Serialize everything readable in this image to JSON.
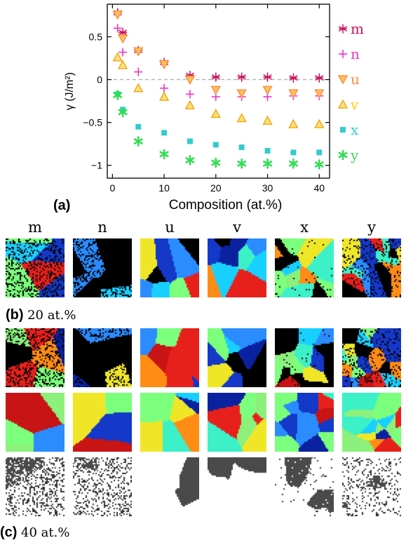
{
  "chart_data": {
    "type": "scatter",
    "ylabel": "γ (J/m²)",
    "xlabel": "Composition (at.%)",
    "xlim": [
      -1,
      42
    ],
    "ylim": [
      -1.15,
      0.88
    ],
    "xticks": [
      0,
      10,
      20,
      30,
      40
    ],
    "yticks": [
      0.5,
      0,
      -0.5,
      -1
    ],
    "ytick_labels": [
      "0.5",
      "0",
      "−0.5",
      "−1"
    ],
    "zero_line": true,
    "legend_position": "right",
    "series": [
      {
        "name": "m",
        "marker": "asterisk",
        "color": "#c8105a",
        "x": [
          1,
          2,
          5,
          10,
          15,
          20,
          25,
          30,
          35,
          40
        ],
        "y": [
          0.78,
          0.55,
          0.34,
          0.2,
          0.05,
          0.03,
          0.03,
          0.03,
          0.02,
          0.02
        ]
      },
      {
        "name": "n",
        "marker": "plus",
        "color": "#ee33cc",
        "x": [
          1,
          2,
          5,
          10,
          15,
          20,
          25,
          30,
          35,
          40
        ],
        "y": [
          0.6,
          0.32,
          0.09,
          -0.1,
          -0.17,
          -0.2,
          -0.2,
          -0.2,
          -0.19,
          -0.19
        ]
      },
      {
        "name": "u",
        "marker": "triangle-down",
        "color": "#ff8c3a",
        "x": [
          1,
          2,
          5,
          10,
          15,
          20,
          25,
          30,
          35,
          40
        ],
        "y": [
          0.76,
          0.48,
          0.33,
          0.18,
          0.0,
          -0.12,
          -0.16,
          -0.12,
          -0.16,
          -0.16
        ]
      },
      {
        "name": "v",
        "marker": "triangle-up",
        "color": "#ffcc00",
        "x": [
          1,
          2,
          5,
          10,
          15,
          20,
          25,
          30,
          35,
          40
        ],
        "y": [
          0.26,
          0.17,
          -0.1,
          -0.2,
          -0.3,
          -0.4,
          -0.45,
          -0.48,
          -0.52,
          -0.52
        ]
      },
      {
        "name": "x",
        "marker": "square",
        "color": "#33cccc",
        "x": [
          1,
          2,
          5,
          10,
          15,
          20,
          25,
          30,
          35,
          40
        ],
        "y": [
          -0.17,
          -0.35,
          -0.55,
          -0.62,
          -0.72,
          -0.76,
          -0.79,
          -0.83,
          -0.85,
          -0.85
        ]
      },
      {
        "name": "y",
        "marker": "star",
        "color": "#33dd55",
        "x": [
          1,
          2,
          5,
          10,
          15,
          20,
          25,
          30,
          35,
          40
        ],
        "y": [
          -0.18,
          -0.38,
          -0.72,
          -0.87,
          -0.94,
          -0.97,
          -0.98,
          -0.98,
          -0.98,
          -0.99
        ]
      }
    ]
  },
  "panels": {
    "a_label": "(a)",
    "b_label": "(b)",
    "b_sub": "20 at.%",
    "c_label": "(c)",
    "c_sub": "40 at.%",
    "columns": [
      "m",
      "n",
      "u",
      "v",
      "x",
      "y"
    ]
  },
  "microstructure": {
    "palette": [
      "#e8201c",
      "#1438c8",
      "#2a8cff",
      "#3cf0c8",
      "#8cf07c",
      "#ff8c14",
      "#f0e628",
      "#0a22a0",
      "#7cff7c",
      "#18d0ff",
      "#c81414"
    ],
    "columns": [
      {
        "name": "m",
        "grains": 7,
        "noise": 0.55,
        "black": 0.18
      },
      {
        "name": "n",
        "grains": 8,
        "noise": 0.5,
        "black": 0.2
      },
      {
        "name": "u",
        "grains": 9,
        "noise": 0.0,
        "black": 0.22
      },
      {
        "name": "v",
        "grains": 10,
        "noise": 0.0,
        "black": 0.2
      },
      {
        "name": "x",
        "grains": 16,
        "noise": 0.05,
        "black": 0.24
      },
      {
        "name": "y",
        "grains": 20,
        "noise": 0.35,
        "black": 0.26
      }
    ]
  }
}
